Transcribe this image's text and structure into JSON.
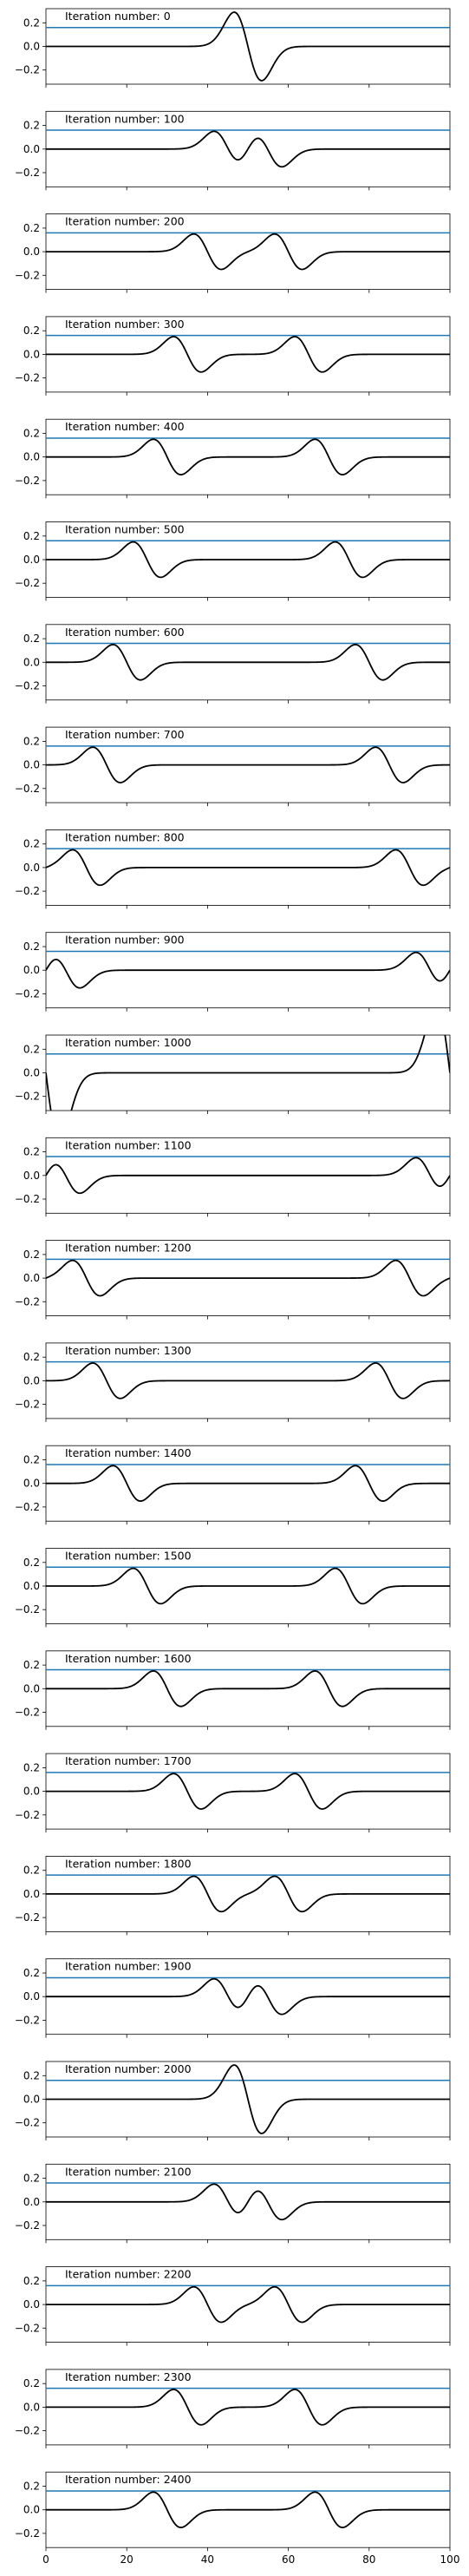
{
  "chart_data": {
    "type": "line",
    "xlim": [
      0,
      100
    ],
    "ylim": [
      -0.32,
      0.32
    ],
    "yticks": [
      -0.2,
      0.0,
      0.2
    ],
    "ytick_labels": [
      "−0.2",
      "0.0",
      "0.2"
    ],
    "xticks": [
      0,
      20,
      40,
      60,
      80,
      100
    ],
    "xtick_labels": [
      "0",
      "20",
      "40",
      "60",
      "80",
      "100"
    ],
    "grid": false,
    "series_styles": {
      "horizontal_line": {
        "color": "#1f77b4",
        "y": 0.16
      },
      "waveform": {
        "color": "#000000"
      }
    },
    "panels": [
      {
        "title": "Iteration number: 0",
        "pulses": [
          {
            "center": 50.0,
            "amp": 0.29
          }
        ]
      },
      {
        "title": "Iteration number: 100",
        "pulses": [
          {
            "center": 45.0,
            "amp": 0.15
          },
          {
            "center": 55.0,
            "amp": 0.15
          }
        ]
      },
      {
        "title": "Iteration number: 200",
        "pulses": [
          {
            "center": 40.0,
            "amp": 0.15
          },
          {
            "center": 60.0,
            "amp": 0.15
          }
        ]
      },
      {
        "title": "Iteration number: 300",
        "pulses": [
          {
            "center": 35.0,
            "amp": 0.15
          },
          {
            "center": 65.0,
            "amp": 0.15
          }
        ]
      },
      {
        "title": "Iteration number: 400",
        "pulses": [
          {
            "center": 30.0,
            "amp": 0.15
          },
          {
            "center": 70.0,
            "amp": 0.15
          }
        ]
      },
      {
        "title": "Iteration number: 500",
        "pulses": [
          {
            "center": 25.0,
            "amp": 0.15
          },
          {
            "center": 75.0,
            "amp": 0.15
          }
        ]
      },
      {
        "title": "Iteration number: 600",
        "pulses": [
          {
            "center": 20.0,
            "amp": 0.15
          },
          {
            "center": 80.0,
            "amp": 0.15
          }
        ]
      },
      {
        "title": "Iteration number: 700",
        "pulses": [
          {
            "center": 15.0,
            "amp": 0.15
          },
          {
            "center": 85.0,
            "amp": 0.15
          }
        ]
      },
      {
        "title": "Iteration number: 800",
        "pulses": [
          {
            "center": 10.0,
            "amp": 0.15
          },
          {
            "center": 90.0,
            "amp": 0.15
          }
        ]
      },
      {
        "title": "Iteration number: 900",
        "pulses": [
          {
            "center": 5.0,
            "amp": 0.15
          },
          {
            "center": 95.0,
            "amp": 0.15
          }
        ]
      },
      {
        "title": "Iteration number: 1000",
        "pulses": [
          {
            "center": 0.0,
            "amp": 0.29
          },
          {
            "center": 100.0,
            "amp": 0.29
          }
        ]
      },
      {
        "title": "Iteration number: 1100",
        "pulses": [
          {
            "center": 5.0,
            "amp": 0.15
          },
          {
            "center": 95.0,
            "amp": 0.15
          }
        ]
      },
      {
        "title": "Iteration number: 1200",
        "pulses": [
          {
            "center": 10.0,
            "amp": 0.15
          },
          {
            "center": 90.0,
            "amp": 0.15
          }
        ]
      },
      {
        "title": "Iteration number: 1300",
        "pulses": [
          {
            "center": 15.0,
            "amp": 0.15
          },
          {
            "center": 85.0,
            "amp": 0.15
          }
        ]
      },
      {
        "title": "Iteration number: 1400",
        "pulses": [
          {
            "center": 20.0,
            "amp": 0.15
          },
          {
            "center": 80.0,
            "amp": 0.15
          }
        ]
      },
      {
        "title": "Iteration number: 1500",
        "pulses": [
          {
            "center": 25.0,
            "amp": 0.15
          },
          {
            "center": 75.0,
            "amp": 0.15
          }
        ]
      },
      {
        "title": "Iteration number: 1600",
        "pulses": [
          {
            "center": 30.0,
            "amp": 0.15
          },
          {
            "center": 70.0,
            "amp": 0.15
          }
        ]
      },
      {
        "title": "Iteration number: 1700",
        "pulses": [
          {
            "center": 35.0,
            "amp": 0.15
          },
          {
            "center": 65.0,
            "amp": 0.15
          }
        ]
      },
      {
        "title": "Iteration number: 1800",
        "pulses": [
          {
            "center": 40.0,
            "amp": 0.15
          },
          {
            "center": 60.0,
            "amp": 0.15
          }
        ]
      },
      {
        "title": "Iteration number: 1900",
        "pulses": [
          {
            "center": 45.0,
            "amp": 0.15
          },
          {
            "center": 55.0,
            "amp": 0.15
          }
        ]
      },
      {
        "title": "Iteration number: 2000",
        "pulses": [
          {
            "center": 50.0,
            "amp": 0.29
          }
        ]
      },
      {
        "title": "Iteration number: 2100",
        "pulses": [
          {
            "center": 45.0,
            "amp": 0.15
          },
          {
            "center": 55.0,
            "amp": 0.15
          }
        ]
      },
      {
        "title": "Iteration number: 2200",
        "pulses": [
          {
            "center": 40.0,
            "amp": 0.15
          },
          {
            "center": 60.0,
            "amp": 0.15
          }
        ]
      },
      {
        "title": "Iteration number: 2300",
        "pulses": [
          {
            "center": 35.0,
            "amp": 0.15
          },
          {
            "center": 65.0,
            "amp": 0.15
          }
        ]
      },
      {
        "title": "Iteration number: 2400",
        "pulses": [
          {
            "center": 30.0,
            "amp": 0.15
          },
          {
            "center": 70.0,
            "amp": 0.15
          }
        ]
      }
    ]
  }
}
